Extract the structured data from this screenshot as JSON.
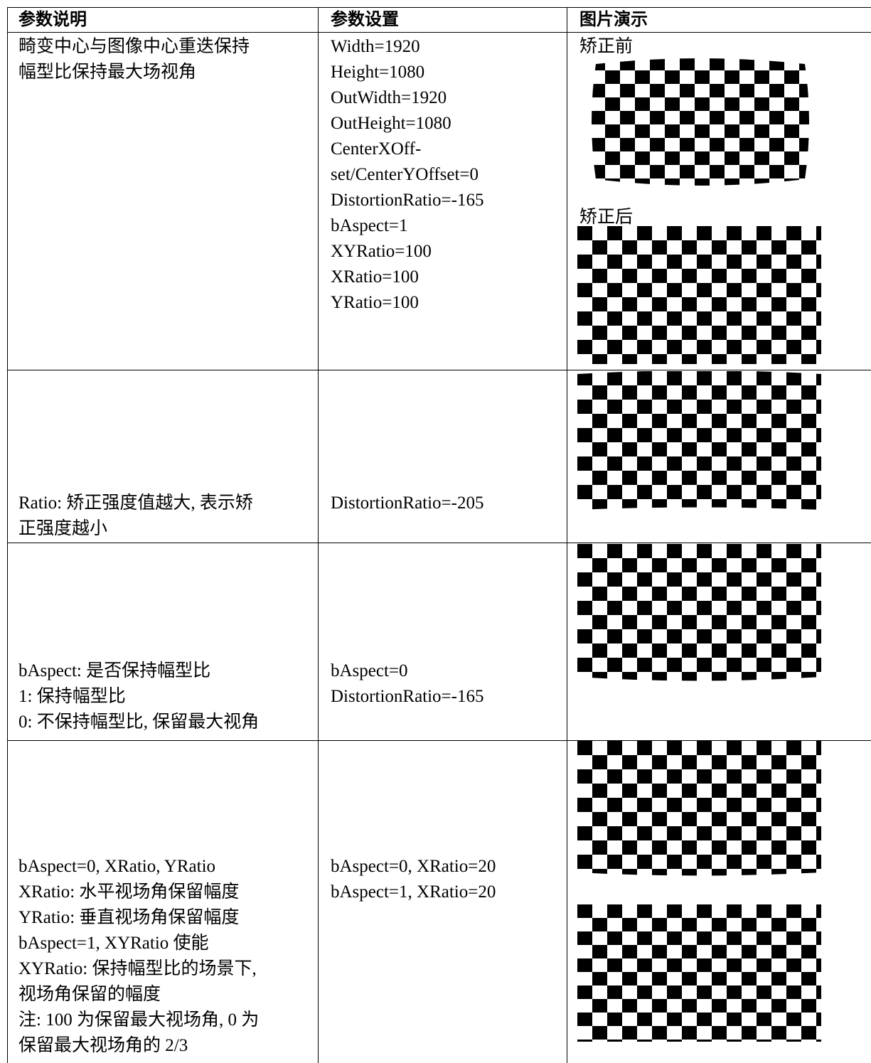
{
  "header": [
    "参数说明",
    "参数设置",
    "图片演示"
  ],
  "rows": [
    {
      "description": [
        "畸变中心与图像中心重迭保持",
        "幅型比保持最大场视角"
      ],
      "settings": [
        "Width=1920",
        "Height=1080",
        "OutWidth=1920",
        "OutHeight=1080",
        "CenterXOff-",
        "set/CenterYOffset=0",
        "DistortionRatio=-165",
        "bAspect=1",
        "XYRatio=100",
        "XRatio=100",
        "YRatio=100"
      ],
      "images": [
        "矫正前",
        "矫正后"
      ]
    },
    {
      "description": [
        "Ratio: 矫正强度值越大, 表示矫",
        "正强度越小"
      ],
      "settings": [
        "DistortionRatio=-205"
      ]
    },
    {
      "description": [
        "bAspect: 是否保持幅型比",
        "1: 保持幅型比",
        "0: 不保持幅型比, 保留最大视角"
      ],
      "settings": [
        "bAspect=0",
        "DistortionRatio=-165"
      ]
    },
    {
      "description": [
        "bAspect=0, XRatio, YRatio",
        "XRatio: 水平视场角保留幅度",
        "YRatio: 垂直视场角保留幅度",
        "bAspect=1, XYRatio 使能",
        "XYRatio: 保持幅型比的场景下,",
        "视场角保留的幅度",
        "注: 100 为保留最大视场角, 0 为",
        "保留最大视场角的 2/3"
      ],
      "settings": [
        "bAspect=0, XRatio=20",
        "bAspect=1, XRatio=20"
      ]
    }
  ]
}
